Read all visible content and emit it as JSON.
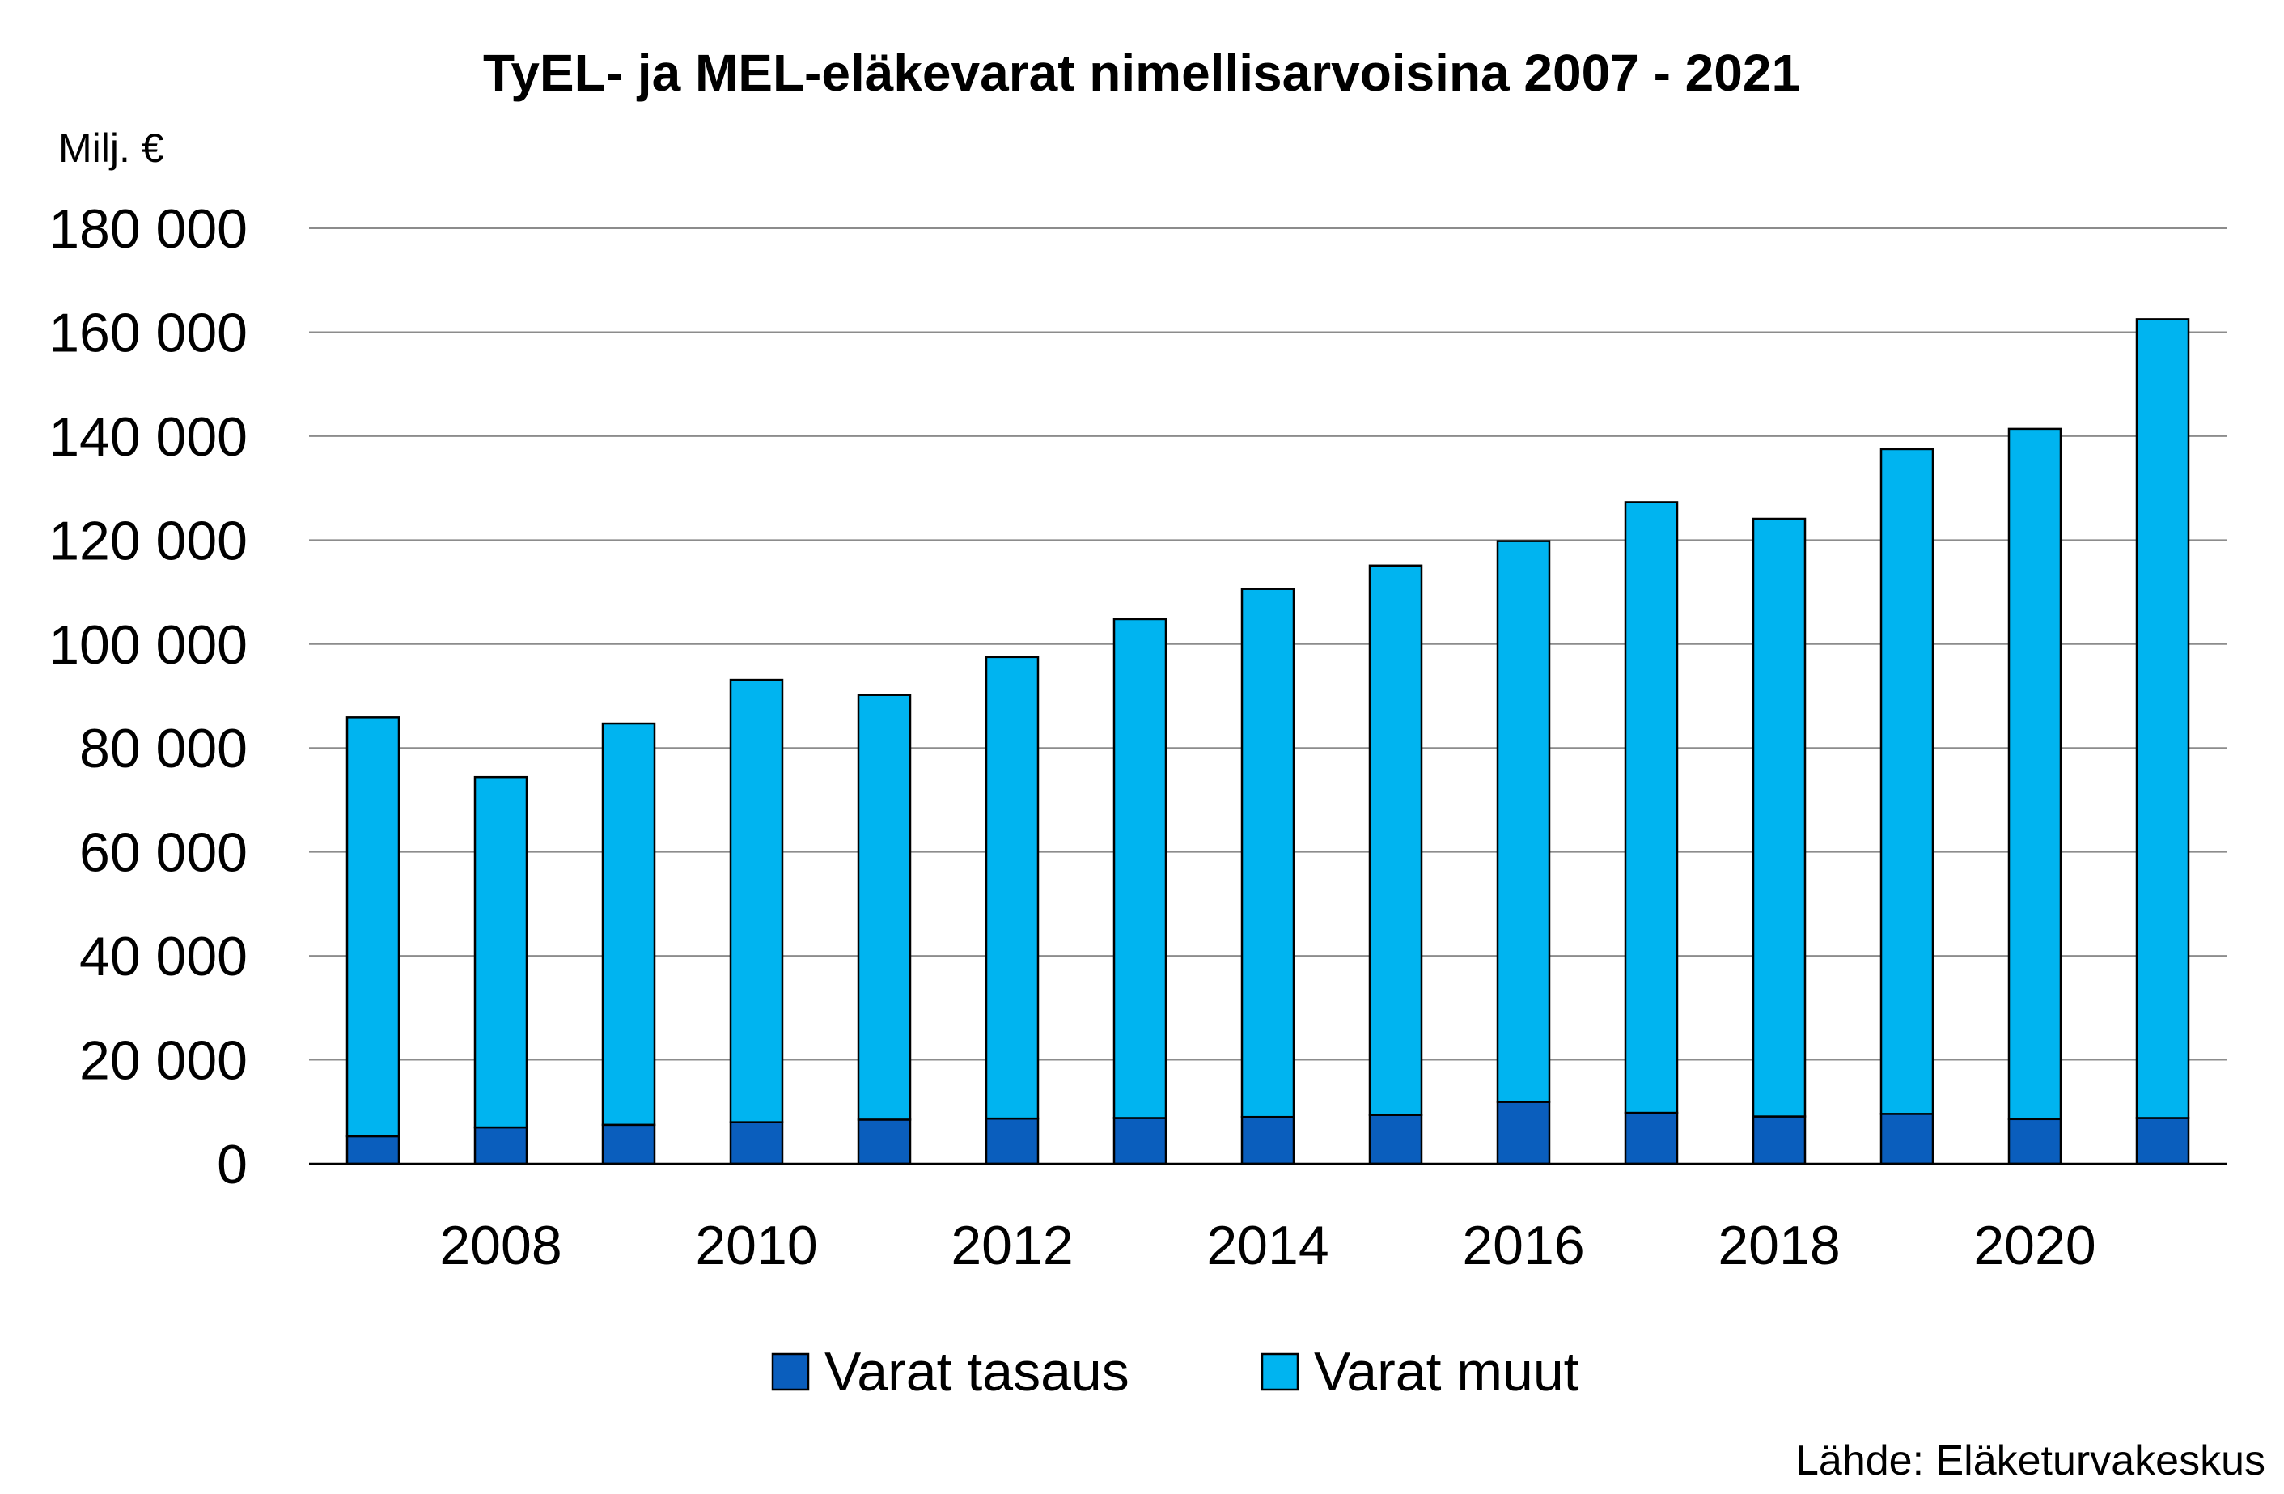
{
  "chart_data": {
    "type": "bar",
    "stacked": true,
    "title": "TyEL- ja MEL-eläkevarat nimellisarvoisina 2007 - 2021",
    "unit_label": "Milj. €",
    "source": "Lähde: Eläketurvakeskus",
    "xlabel": "",
    "ylabel": "",
    "ylim": [
      0,
      180000
    ],
    "yticks": [
      0,
      20000,
      40000,
      60000,
      80000,
      100000,
      120000,
      140000,
      160000,
      180000
    ],
    "ytick_labels": [
      "0",
      "20 000",
      "40 000",
      "60 000",
      "80 000",
      "100 000",
      "120 000",
      "140 000",
      "160 000",
      "180 000"
    ],
    "categories": [
      2007,
      2008,
      2009,
      2010,
      2011,
      2012,
      2013,
      2014,
      2015,
      2016,
      2017,
      2018,
      2019,
      2020,
      2021
    ],
    "x_tick_labels": [
      "",
      "2008",
      "",
      "2010",
      "",
      "2012",
      "",
      "2014",
      "",
      "2016",
      "",
      "2018",
      "",
      "2020",
      ""
    ],
    "grid": true,
    "legend_position": "bottom",
    "series": [
      {
        "name": "Varat tasaus",
        "color": "#0a5ebd",
        "values": [
          5300,
          7000,
          7500,
          8000,
          8500,
          8700,
          8800,
          9000,
          9400,
          11900,
          9800,
          9100,
          9600,
          8600,
          8800
        ]
      },
      {
        "name": "Varat muut",
        "color": "#00b4f0",
        "values": [
          80600,
          67400,
          77200,
          85100,
          81700,
          88800,
          96000,
          101600,
          105700,
          107900,
          117500,
          115000,
          127900,
          132800,
          153700
        ]
      }
    ]
  }
}
